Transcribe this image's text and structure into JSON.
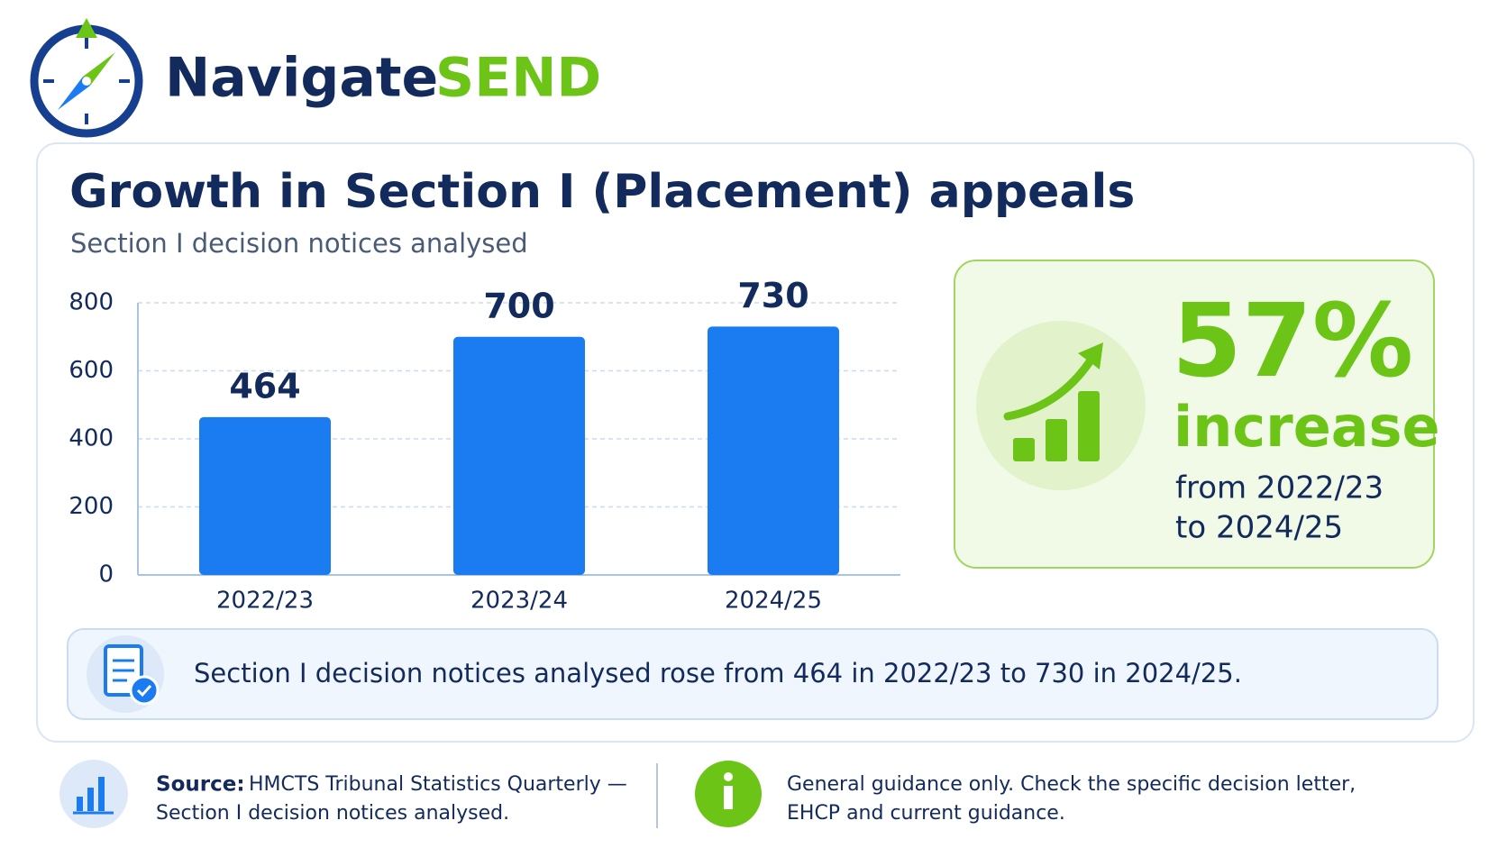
{
  "brand": {
    "name": "Navigate",
    "accent": "SEND"
  },
  "chart_data": {
    "type": "bar",
    "title": "Growth in Section I (Placement) appeals",
    "subtitle": "Section I decision notices analysed",
    "categories": [
      "2022/23",
      "2023/24",
      "2024/25"
    ],
    "values": [
      464,
      700,
      730
    ],
    "color": "#1a7cf0",
    "ylim": [
      0,
      800
    ],
    "yticks": [
      0,
      200,
      400,
      600,
      800
    ],
    "grid": true
  },
  "callout": {
    "value": "57%",
    "label": "increase",
    "detail": [
      "from 2022/23",
      "to 2024/25"
    ]
  },
  "note": "Section I decision notices analysed rose from 464 in 2022/23 to 730 in 2024/25.",
  "source": {
    "label": "Source:",
    "lines": [
      "HMCTS Tribunal Statistics Quarterly —",
      "Section I decision notices analysed."
    ]
  },
  "disclaimer": [
    "General guidance only. Check the specific decision letter,",
    "EHCP and current guidance."
  ]
}
